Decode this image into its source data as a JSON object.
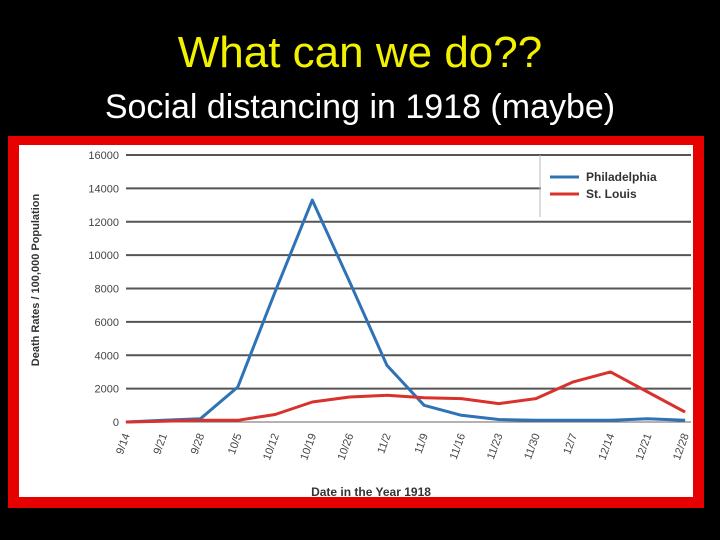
{
  "slide": {
    "title": "What can we do??",
    "subtitle": "Social distancing in 1918 (maybe)"
  },
  "colors": {
    "title": "#f2f200",
    "frame": "#e60000",
    "philadelphia": "#2f73b6",
    "st_louis": "#d9312b"
  },
  "chart_data": {
    "type": "line",
    "title": "",
    "xlabel": "Date in the Year 1918",
    "ylabel": "Death Rates / 100,000 Population",
    "categories": [
      "9/14",
      "9/21",
      "9/28",
      "10/5",
      "10/12",
      "10/19",
      "10/26",
      "11/2",
      "11/9",
      "11/16",
      "11/23",
      "11/30",
      "12/7",
      "12/14",
      "12/21",
      "12/28"
    ],
    "yticks": [
      "0",
      "2000",
      "4000",
      "6000",
      "8000",
      "10000",
      "12000",
      "14000",
      "16000"
    ],
    "ylim": [
      0,
      16000
    ],
    "grid": "horizontal",
    "legend_position": "top-right",
    "series": [
      {
        "name": "Philadelphia",
        "values": [
          0,
          100,
          200,
          2100,
          7800,
          13300,
          8400,
          3400,
          1000,
          400,
          150,
          100,
          100,
          100,
          200,
          100
        ]
      },
      {
        "name": "St. Louis",
        "values": [
          0,
          50,
          100,
          100,
          450,
          1200,
          1500,
          1600,
          1450,
          1400,
          1100,
          1400,
          2400,
          3000,
          1800,
          600
        ]
      }
    ]
  }
}
